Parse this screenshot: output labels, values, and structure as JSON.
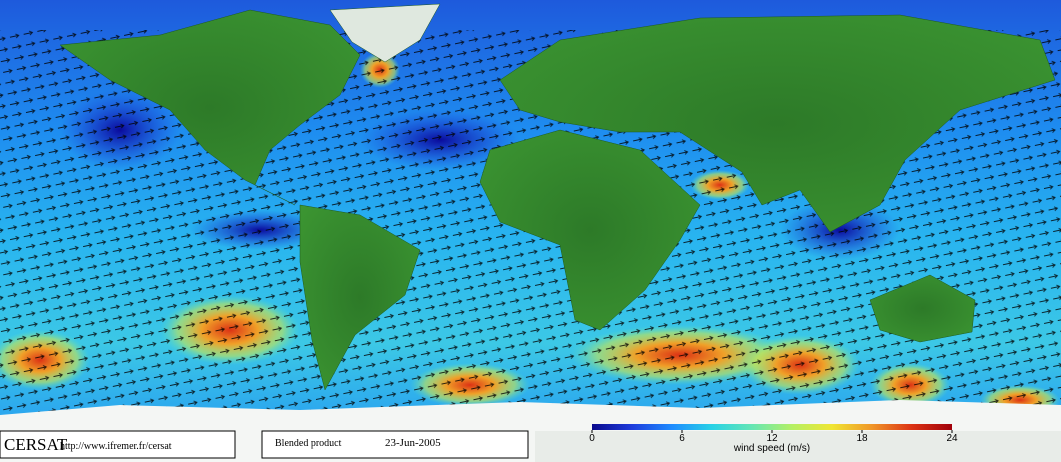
{
  "footer": {
    "logo": "CERSAT",
    "url": "http://www.ifremer.fr/cersat",
    "product": "Blended product",
    "date": "23-Jun-2005"
  },
  "colorbar": {
    "label": "wind speed (m/s)",
    "range": [
      0,
      24
    ],
    "ticks": [
      0,
      6,
      12,
      18,
      24
    ],
    "colors": [
      "#0a0a8c",
      "#1e3cdc",
      "#1e8cff",
      "#28d2e6",
      "#64e6b4",
      "#b4f064",
      "#f0e632",
      "#f09628",
      "#dc3214",
      "#a0000a"
    ]
  }
}
